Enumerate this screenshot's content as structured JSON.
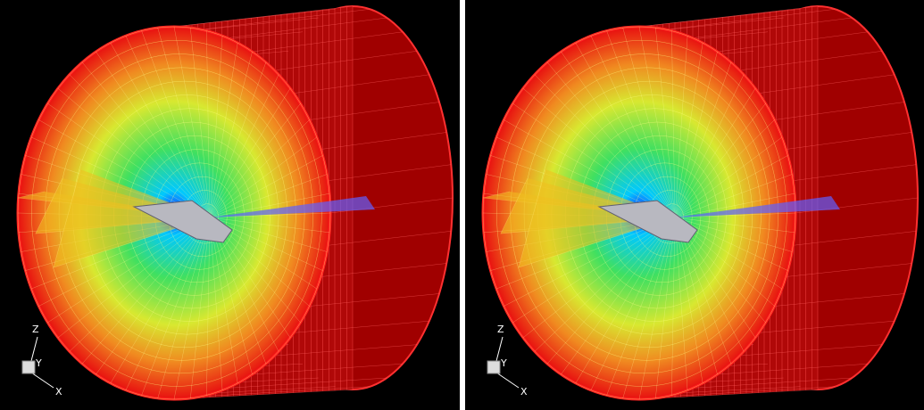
{
  "panels": [
    {
      "axes": {
        "z": "Z",
        "y": "Y",
        "x": "X"
      }
    },
    {
      "axes": {
        "z": "Z",
        "y": "Y",
        "x": "X"
      }
    }
  ]
}
